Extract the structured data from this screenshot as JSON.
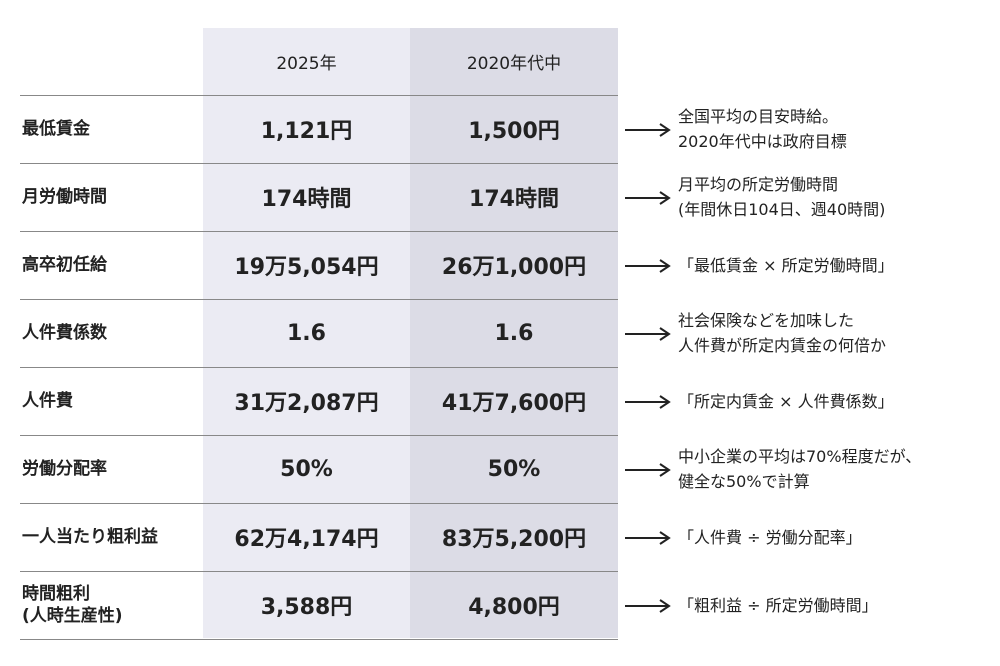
{
  "table": {
    "header": [
      "2025年",
      "2020年代中"
    ],
    "rows": [
      {
        "label": [
          "最低賃金"
        ],
        "cells": [
          "1,121円",
          "1,500円"
        ],
        "note": [
          "全国平均の目安時給。",
          "2020年代中は政府目標"
        ]
      },
      {
        "label": [
          "月労働時間"
        ],
        "cells": [
          "174時間",
          "174時間"
        ],
        "note": [
          "月平均の所定労働時間",
          "(年間休日104日、週40時間)"
        ]
      },
      {
        "label": [
          "高卒初任給"
        ],
        "cells": [
          "19万5,054円",
          "26万1,000円"
        ],
        "note": [
          "「最低賃金 × 所定労働時間」"
        ]
      },
      {
        "label": [
          "人件費係数"
        ],
        "cells": [
          "1.6",
          "1.6"
        ],
        "note": [
          "社会保険などを加味した",
          "人件費が所定内賃金の何倍か"
        ]
      },
      {
        "label": [
          "人件費"
        ],
        "cells": [
          "31万2,087円",
          "41万7,600円"
        ],
        "note": [
          "「所定内賃金 × 人件費係数」"
        ]
      },
      {
        "label": [
          "労働分配率"
        ],
        "cells": [
          "50%",
          "50%"
        ],
        "note": [
          "中小企業の平均は70%程度だが、",
          "健全な50%で計算"
        ]
      },
      {
        "label": [
          "一人当たり粗利益"
        ],
        "cells": [
          "62万4,174円",
          "83万5,200円"
        ],
        "note": [
          "「人件費 ÷ 労働分配率」"
        ]
      },
      {
        "label": [
          "時間粗利",
          "(人時生産性)"
        ],
        "cells": [
          "3,588円",
          "4,800円"
        ],
        "note": [
          "「粗利益 ÷ 所定労働時間」"
        ]
      }
    ]
  }
}
